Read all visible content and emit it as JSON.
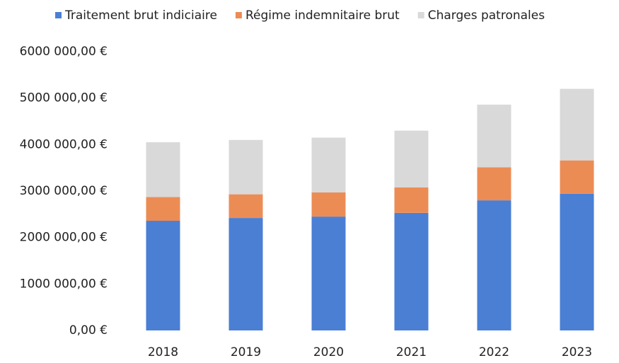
{
  "chart_data": {
    "type": "stacked_bar",
    "categories": [
      "2018",
      "2019",
      "2020",
      "2021",
      "2022",
      "2023"
    ],
    "series": [
      {
        "name": "Traitement brut indiciaire",
        "color": "#4a7fd4",
        "values": [
          2360000,
          2420000,
          2450000,
          2530000,
          2800000,
          2940000
        ]
      },
      {
        "name": "Régime indemnitaire brut",
        "color": "#ec8c55",
        "values": [
          510000,
          510000,
          520000,
          550000,
          710000,
          720000
        ]
      },
      {
        "name": "Charges patronales",
        "color": "#d9d9d9",
        "values": [
          1180000,
          1170000,
          1180000,
          1220000,
          1350000,
          1540000
        ]
      }
    ],
    "ylim": [
      0,
      6000000
    ],
    "yticks": [
      {
        "value": 0,
        "label": "0,00 €"
      },
      {
        "value": 1000000,
        "label": "1000 000,00 €"
      },
      {
        "value": 2000000,
        "label": "2000 000,00 €"
      },
      {
        "value": 3000000,
        "label": "3000 000,00 €"
      },
      {
        "value": 4000000,
        "label": "4000 000,00 €"
      },
      {
        "value": 5000000,
        "label": "5000 000,00 €"
      },
      {
        "value": 6000000,
        "label": "6000 000,00 €"
      }
    ],
    "grid": false,
    "legend": "top"
  }
}
